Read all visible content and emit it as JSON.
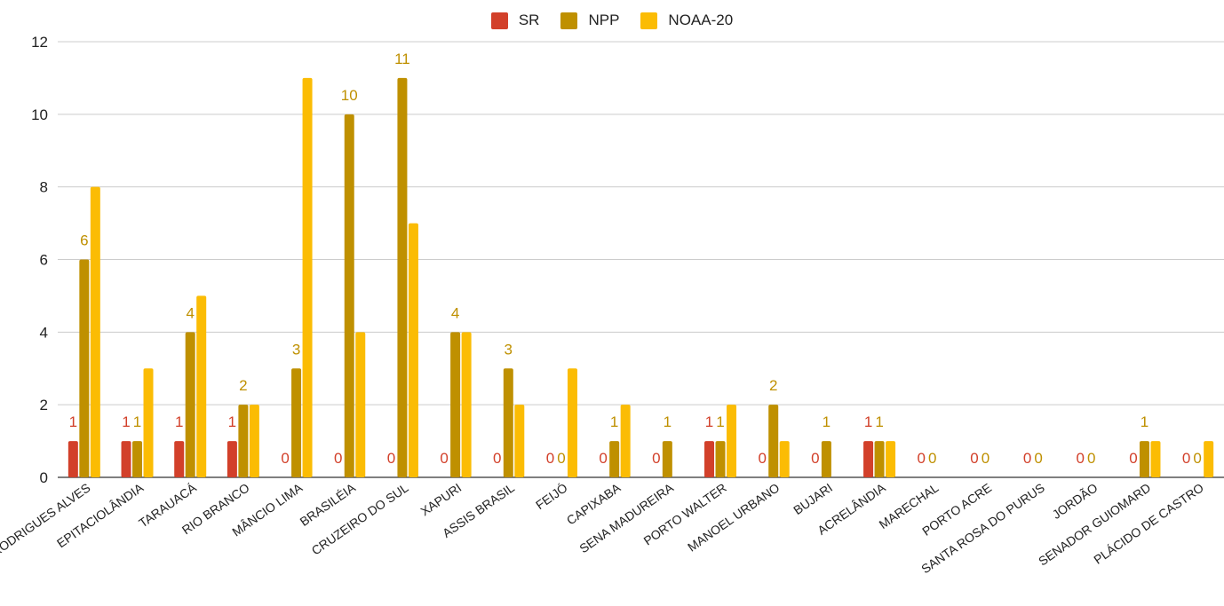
{
  "chart_data": {
    "type": "bar",
    "categories": [
      "RODRIGUES ALVES",
      "EPITACIOLÂNDIA",
      "TARAUACÁ",
      "RIO BRANCO",
      "MÂNCIO LIMA",
      "BRASILÉIA",
      "CRUZEIRO DO SUL",
      "XAPURI",
      "ASSIS BRASIL",
      "FEIJÓ",
      "CAPIXABA",
      "SENA MADUREIRA",
      "PORTO WALTER",
      "MANOEL URBANO",
      "BUJARI",
      "ACRELÂNDIA",
      "MARECHAL",
      "PORTO ACRE",
      "SANTA ROSA DO PURUS",
      "JORDÃO",
      "SENADOR GUIOMARD",
      "PLÁCIDO DE CASTRO"
    ],
    "series": [
      {
        "name": "SR",
        "color": "#d2402a",
        "values": [
          1,
          1,
          1,
          1,
          0,
          0,
          0,
          0,
          0,
          0,
          0,
          0,
          1,
          0,
          0,
          1,
          0,
          0,
          0,
          0,
          0,
          0
        ]
      },
      {
        "name": "NPP",
        "color": "#bf9000",
        "values": [
          6,
          1,
          4,
          2,
          3,
          10,
          11,
          4,
          3,
          0,
          1,
          1,
          1,
          2,
          1,
          1,
          0,
          0,
          0,
          0,
          1,
          0
        ]
      },
      {
        "name": "NOAA-20",
        "color": "#fbbc04",
        "values": [
          8,
          3,
          5,
          2,
          11,
          4,
          7,
          4,
          2,
          3,
          2,
          0,
          2,
          1,
          0,
          1,
          0,
          0,
          0,
          0,
          1,
          1
        ]
      }
    ],
    "data_labels": {
      "SR": true,
      "NPP": true,
      "NOAA-20": false
    },
    "ylim": [
      0,
      12
    ],
    "yticks": [
      0,
      2,
      4,
      6,
      8,
      10,
      12
    ],
    "grid": true,
    "legend_position": "top-center",
    "xlabel": "",
    "ylabel": "",
    "title": ""
  }
}
